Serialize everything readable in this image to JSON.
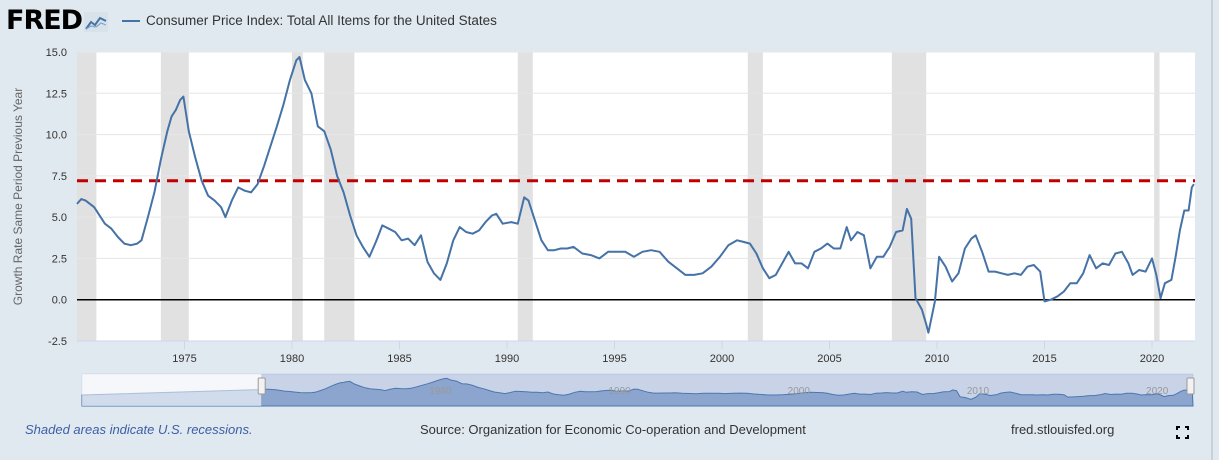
{
  "header": {
    "logo_text": "FRED",
    "logo_icon": "line-chart-icon"
  },
  "chart_data": {
    "type": "line",
    "title": "",
    "series": [
      {
        "name": "Consumer Price Index: Total All Items for the United States",
        "color": "#4572a7",
        "values": [
          [
            1970.0,
            5.8
          ],
          [
            1970.2,
            6.1
          ],
          [
            1970.4,
            6.0
          ],
          [
            1970.8,
            5.6
          ],
          [
            1971.0,
            5.2
          ],
          [
            1971.3,
            4.6
          ],
          [
            1971.6,
            4.3
          ],
          [
            1971.9,
            3.8
          ],
          [
            1972.2,
            3.4
          ],
          [
            1972.5,
            3.3
          ],
          [
            1972.8,
            3.4
          ],
          [
            1973.0,
            3.6
          ],
          [
            1973.3,
            5.0
          ],
          [
            1973.6,
            6.5
          ],
          [
            1973.9,
            8.5
          ],
          [
            1974.2,
            10.2
          ],
          [
            1974.4,
            11.1
          ],
          [
            1974.6,
            11.5
          ],
          [
            1974.8,
            12.1
          ],
          [
            1974.95,
            12.3
          ],
          [
            1975.2,
            10.2
          ],
          [
            1975.5,
            8.6
          ],
          [
            1975.8,
            7.2
          ],
          [
            1976.1,
            6.3
          ],
          [
            1976.4,
            6.0
          ],
          [
            1976.7,
            5.6
          ],
          [
            1976.9,
            5.0
          ],
          [
            1977.2,
            6.0
          ],
          [
            1977.5,
            6.8
          ],
          [
            1977.8,
            6.6
          ],
          [
            1978.1,
            6.5
          ],
          [
            1978.4,
            7.0
          ],
          [
            1978.7,
            8.1
          ],
          [
            1979.0,
            9.3
          ],
          [
            1979.3,
            10.5
          ],
          [
            1979.6,
            11.8
          ],
          [
            1979.9,
            13.3
          ],
          [
            1980.2,
            14.5
          ],
          [
            1980.35,
            14.7
          ],
          [
            1980.6,
            13.3
          ],
          [
            1980.9,
            12.5
          ],
          [
            1981.2,
            10.5
          ],
          [
            1981.5,
            10.2
          ],
          [
            1981.8,
            9.1
          ],
          [
            1982.1,
            7.5
          ],
          [
            1982.4,
            6.5
          ],
          [
            1982.7,
            5.1
          ],
          [
            1983.0,
            3.9
          ],
          [
            1983.3,
            3.2
          ],
          [
            1983.6,
            2.6
          ],
          [
            1983.9,
            3.5
          ],
          [
            1984.2,
            4.5
          ],
          [
            1984.5,
            4.3
          ],
          [
            1984.8,
            4.1
          ],
          [
            1985.1,
            3.6
          ],
          [
            1985.4,
            3.7
          ],
          [
            1985.7,
            3.3
          ],
          [
            1986.0,
            3.9
          ],
          [
            1986.3,
            2.3
          ],
          [
            1986.6,
            1.6
          ],
          [
            1986.9,
            1.2
          ],
          [
            1987.2,
            2.2
          ],
          [
            1987.5,
            3.6
          ],
          [
            1987.8,
            4.4
          ],
          [
            1988.1,
            4.1
          ],
          [
            1988.4,
            4.0
          ],
          [
            1988.7,
            4.2
          ],
          [
            1989.0,
            4.7
          ],
          [
            1989.3,
            5.1
          ],
          [
            1989.5,
            5.2
          ],
          [
            1989.8,
            4.6
          ],
          [
            1990.2,
            4.7
          ],
          [
            1990.5,
            4.6
          ],
          [
            1990.8,
            6.2
          ],
          [
            1991.0,
            6.0
          ],
          [
            1991.3,
            4.8
          ],
          [
            1991.6,
            3.6
          ],
          [
            1991.9,
            3.0
          ],
          [
            1992.2,
            3.0
          ],
          [
            1992.5,
            3.1
          ],
          [
            1992.8,
            3.1
          ],
          [
            1993.1,
            3.2
          ],
          [
            1993.5,
            2.8
          ],
          [
            1993.9,
            2.7
          ],
          [
            1994.3,
            2.5
          ],
          [
            1994.7,
            2.9
          ],
          [
            1995.1,
            2.9
          ],
          [
            1995.5,
            2.9
          ],
          [
            1995.9,
            2.6
          ],
          [
            1996.3,
            2.9
          ],
          [
            1996.7,
            3.0
          ],
          [
            1997.1,
            2.9
          ],
          [
            1997.5,
            2.3
          ],
          [
            1997.9,
            1.9
          ],
          [
            1998.3,
            1.5
          ],
          [
            1998.7,
            1.5
          ],
          [
            1999.1,
            1.6
          ],
          [
            1999.5,
            2.0
          ],
          [
            1999.9,
            2.6
          ],
          [
            2000.3,
            3.3
          ],
          [
            2000.7,
            3.6
          ],
          [
            2001.0,
            3.5
          ],
          [
            2001.3,
            3.4
          ],
          [
            2001.6,
            2.8
          ],
          [
            2001.9,
            1.9
          ],
          [
            2002.2,
            1.3
          ],
          [
            2002.5,
            1.5
          ],
          [
            2002.8,
            2.2
          ],
          [
            2003.1,
            2.9
          ],
          [
            2003.4,
            2.2
          ],
          [
            2003.7,
            2.2
          ],
          [
            2004.0,
            1.9
          ],
          [
            2004.3,
            2.9
          ],
          [
            2004.6,
            3.1
          ],
          [
            2004.9,
            3.4
          ],
          [
            2005.2,
            3.1
          ],
          [
            2005.5,
            3.1
          ],
          [
            2005.8,
            4.4
          ],
          [
            2006.0,
            3.6
          ],
          [
            2006.3,
            4.1
          ],
          [
            2006.6,
            3.9
          ],
          [
            2006.9,
            1.9
          ],
          [
            2007.2,
            2.6
          ],
          [
            2007.5,
            2.6
          ],
          [
            2007.8,
            3.2
          ],
          [
            2008.1,
            4.1
          ],
          [
            2008.4,
            4.2
          ],
          [
            2008.6,
            5.5
          ],
          [
            2008.8,
            4.9
          ],
          [
            2009.0,
            0.1
          ],
          [
            2009.3,
            -0.6
          ],
          [
            2009.5,
            -1.5
          ],
          [
            2009.6,
            -2.0
          ],
          [
            2009.9,
            -0.1
          ],
          [
            2010.1,
            2.6
          ],
          [
            2010.4,
            2.0
          ],
          [
            2010.7,
            1.1
          ],
          [
            2011.0,
            1.6
          ],
          [
            2011.3,
            3.1
          ],
          [
            2011.6,
            3.7
          ],
          [
            2011.8,
            3.9
          ],
          [
            2012.1,
            2.9
          ],
          [
            2012.4,
            1.7
          ],
          [
            2012.7,
            1.7
          ],
          [
            2013.0,
            1.6
          ],
          [
            2013.3,
            1.5
          ],
          [
            2013.6,
            1.6
          ],
          [
            2013.9,
            1.5
          ],
          [
            2014.2,
            2.0
          ],
          [
            2014.5,
            2.1
          ],
          [
            2014.8,
            1.7
          ],
          [
            2015.0,
            -0.1
          ],
          [
            2015.3,
            0.0
          ],
          [
            2015.6,
            0.2
          ],
          [
            2015.9,
            0.5
          ],
          [
            2016.2,
            1.0
          ],
          [
            2016.5,
            1.0
          ],
          [
            2016.8,
            1.6
          ],
          [
            2017.1,
            2.7
          ],
          [
            2017.4,
            1.9
          ],
          [
            2017.7,
            2.2
          ],
          [
            2018.0,
            2.1
          ],
          [
            2018.3,
            2.8
          ],
          [
            2018.6,
            2.9
          ],
          [
            2018.9,
            2.2
          ],
          [
            2019.1,
            1.5
          ],
          [
            2019.4,
            1.8
          ],
          [
            2019.7,
            1.7
          ],
          [
            2020.0,
            2.5
          ],
          [
            2020.2,
            1.5
          ],
          [
            2020.4,
            0.1
          ],
          [
            2020.6,
            1.0
          ],
          [
            2020.9,
            1.2
          ],
          [
            2021.1,
            2.6
          ],
          [
            2021.3,
            4.2
          ],
          [
            2021.5,
            5.4
          ],
          [
            2021.7,
            5.4
          ],
          [
            2021.85,
            6.8
          ],
          [
            2021.95,
            7.0
          ]
        ]
      }
    ],
    "reference_lines": [
      {
        "value": 7.2,
        "color": "#c00000",
        "style": "dashed"
      },
      {
        "value": 0.0,
        "color": "#000000",
        "style": "solid"
      }
    ],
    "recessions": [
      [
        1970.0,
        1970.9
      ],
      [
        1973.9,
        1975.2
      ],
      [
        1980.0,
        1980.5
      ],
      [
        1981.5,
        1982.9
      ],
      [
        1990.5,
        1991.2
      ],
      [
        2001.2,
        2001.9
      ],
      [
        2007.9,
        2009.5
      ],
      [
        2020.1,
        2020.35
      ]
    ],
    "ylabel": "Growth Rate Same Period Previous Year",
    "xlabel": "",
    "ylim": [
      -2.5,
      15.0
    ],
    "xlim": [
      1970.0,
      2022.0
    ],
    "yticks": [
      "15.0",
      "12.5",
      "10.0",
      "7.5",
      "5.0",
      "2.5",
      "0.0",
      "-2.5"
    ],
    "xticks": [
      "1975",
      "1980",
      "1985",
      "1990",
      "1995",
      "2000",
      "2005",
      "2010",
      "2015",
      "2020"
    ],
    "grid": true,
    "legend_position": "top-left"
  },
  "navigator": {
    "labels": [
      "1980",
      "1990",
      "2000",
      "2010",
      "2020"
    ]
  },
  "footer": {
    "recession_note": "Shaded areas indicate U.S. recessions.",
    "source": "Source: Organization for Economic Co-operation and Development",
    "site": "fred.stlouisfed.org",
    "expand_icon": "fullscreen-icon"
  }
}
